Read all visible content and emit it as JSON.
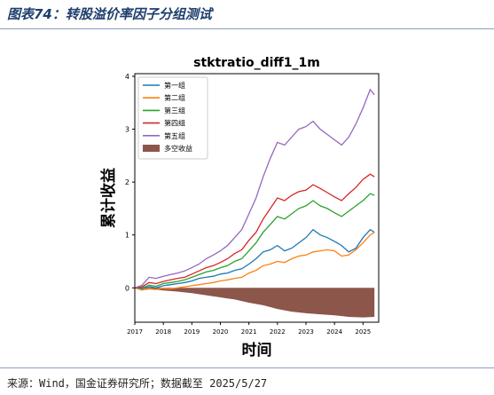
{
  "figure_title": "图表74：转股溢价率因子分组测试",
  "source_note": "来源：Wind，国金证券研究所；数据截至 2025/5/27",
  "chart_data": {
    "type": "line",
    "title": "stktratio_diff1_1m",
    "xlabel": "时间",
    "ylabel": "累计收益",
    "xlim": [
      2017.0,
      2025.55
    ],
    "ylim": [
      -0.65,
      4.05
    ],
    "yticks": [
      0,
      1,
      2,
      3,
      4
    ],
    "xticks": [
      2017,
      2018,
      2019,
      2020,
      2021,
      2022,
      2023,
      2024,
      2025
    ],
    "legend_position": "top-left",
    "grid": false,
    "series": [
      {
        "name": "第一组",
        "color": "#1f77b4",
        "x": [
          2017.0,
          2017.25,
          2017.5,
          2017.75,
          2018.0,
          2018.25,
          2018.5,
          2018.75,
          2019.0,
          2019.25,
          2019.5,
          2019.75,
          2020.0,
          2020.25,
          2020.5,
          2020.75,
          2021.0,
          2021.25,
          2021.5,
          2021.75,
          2022.0,
          2022.25,
          2022.5,
          2022.75,
          2023.0,
          2023.25,
          2023.5,
          2023.75,
          2024.0,
          2024.25,
          2024.5,
          2024.75,
          2025.0,
          2025.25,
          2025.4
        ],
        "values": [
          0.0,
          -0.02,
          0.02,
          0.0,
          0.04,
          0.06,
          0.08,
          0.1,
          0.13,
          0.18,
          0.2,
          0.22,
          0.26,
          0.28,
          0.33,
          0.36,
          0.45,
          0.55,
          0.68,
          0.72,
          0.8,
          0.7,
          0.75,
          0.85,
          0.95,
          1.1,
          1.0,
          0.95,
          0.88,
          0.8,
          0.68,
          0.75,
          0.95,
          1.1,
          1.05
        ]
      },
      {
        "name": "第二组",
        "color": "#ff7f0e",
        "x": [
          2017.0,
          2017.25,
          2017.5,
          2017.75,
          2018.0,
          2018.25,
          2018.5,
          2018.75,
          2019.0,
          2019.25,
          2019.5,
          2019.75,
          2020.0,
          2020.25,
          2020.5,
          2020.75,
          2021.0,
          2021.25,
          2021.5,
          2021.75,
          2022.0,
          2022.25,
          2022.5,
          2022.75,
          2023.0,
          2023.25,
          2023.5,
          2023.75,
          2024.0,
          2024.25,
          2024.5,
          2024.75,
          2025.0,
          2025.25,
          2025.4
        ],
        "values": [
          0.0,
          -0.04,
          -0.02,
          -0.03,
          -0.01,
          -0.02,
          0.0,
          0.02,
          0.04,
          0.06,
          0.08,
          0.1,
          0.13,
          0.15,
          0.18,
          0.2,
          0.28,
          0.33,
          0.42,
          0.45,
          0.5,
          0.48,
          0.55,
          0.6,
          0.62,
          0.68,
          0.7,
          0.72,
          0.7,
          0.6,
          0.62,
          0.72,
          0.85,
          1.0,
          1.05
        ]
      },
      {
        "name": "第三组",
        "color": "#2ca02c",
        "x": [
          2017.0,
          2017.25,
          2017.5,
          2017.75,
          2018.0,
          2018.25,
          2018.5,
          2018.75,
          2019.0,
          2019.25,
          2019.5,
          2019.75,
          2020.0,
          2020.25,
          2020.5,
          2020.75,
          2021.0,
          2021.25,
          2021.5,
          2021.75,
          2022.0,
          2022.25,
          2022.5,
          2022.75,
          2023.0,
          2023.25,
          2023.5,
          2023.75,
          2024.0,
          2024.25,
          2024.5,
          2024.75,
          2025.0,
          2025.25,
          2025.4
        ],
        "values": [
          0.0,
          0.0,
          0.05,
          0.03,
          0.08,
          0.1,
          0.12,
          0.15,
          0.2,
          0.25,
          0.3,
          0.33,
          0.38,
          0.42,
          0.5,
          0.55,
          0.7,
          0.85,
          1.05,
          1.2,
          1.35,
          1.3,
          1.4,
          1.5,
          1.55,
          1.65,
          1.55,
          1.5,
          1.42,
          1.35,
          1.45,
          1.55,
          1.65,
          1.78,
          1.75
        ]
      },
      {
        "name": "第四组",
        "color": "#d62728",
        "x": [
          2017.0,
          2017.25,
          2017.5,
          2017.75,
          2018.0,
          2018.25,
          2018.5,
          2018.75,
          2019.0,
          2019.25,
          2019.5,
          2019.75,
          2020.0,
          2020.25,
          2020.5,
          2020.75,
          2021.0,
          2021.25,
          2021.5,
          2021.75,
          2022.0,
          2022.25,
          2022.5,
          2022.75,
          2023.0,
          2023.25,
          2023.5,
          2023.75,
          2024.0,
          2024.25,
          2024.5,
          2024.75,
          2025.0,
          2025.25,
          2025.4
        ],
        "values": [
          0.0,
          0.02,
          0.1,
          0.08,
          0.12,
          0.15,
          0.18,
          0.2,
          0.26,
          0.32,
          0.38,
          0.42,
          0.48,
          0.55,
          0.65,
          0.72,
          0.9,
          1.05,
          1.3,
          1.5,
          1.7,
          1.65,
          1.75,
          1.82,
          1.85,
          1.95,
          1.88,
          1.8,
          1.72,
          1.65,
          1.78,
          1.9,
          2.05,
          2.15,
          2.1
        ]
      },
      {
        "name": "第五组",
        "color": "#9467bd",
        "x": [
          2017.0,
          2017.25,
          2017.5,
          2017.75,
          2018.0,
          2018.25,
          2018.5,
          2018.75,
          2019.0,
          2019.25,
          2019.5,
          2019.75,
          2020.0,
          2020.25,
          2020.5,
          2020.75,
          2021.0,
          2021.25,
          2021.5,
          2021.75,
          2022.0,
          2022.25,
          2022.5,
          2022.75,
          2023.0,
          2023.25,
          2023.5,
          2023.75,
          2024.0,
          2024.25,
          2024.5,
          2024.75,
          2025.0,
          2025.25,
          2025.4
        ],
        "values": [
          0.0,
          0.05,
          0.2,
          0.18,
          0.22,
          0.25,
          0.28,
          0.32,
          0.38,
          0.45,
          0.55,
          0.62,
          0.7,
          0.8,
          0.95,
          1.1,
          1.4,
          1.7,
          2.1,
          2.45,
          2.75,
          2.7,
          2.85,
          3.0,
          3.05,
          3.15,
          3.0,
          2.9,
          2.8,
          2.7,
          2.85,
          3.1,
          3.4,
          3.75,
          3.65
        ]
      }
    ],
    "area_series": {
      "name": "多空收益",
      "color": "#8c564b",
      "x": [
        2017.0,
        2017.5,
        2018.0,
        2018.5,
        2019.0,
        2019.5,
        2020.0,
        2020.5,
        2021.0,
        2021.5,
        2022.0,
        2022.5,
        2023.0,
        2023.5,
        2024.0,
        2024.5,
        2025.0,
        2025.4
      ],
      "values": [
        0.0,
        -0.02,
        -0.05,
        -0.07,
        -0.1,
        -0.14,
        -0.18,
        -0.22,
        -0.28,
        -0.33,
        -0.4,
        -0.45,
        -0.48,
        -0.5,
        -0.52,
        -0.55,
        -0.56,
        -0.55
      ]
    }
  }
}
